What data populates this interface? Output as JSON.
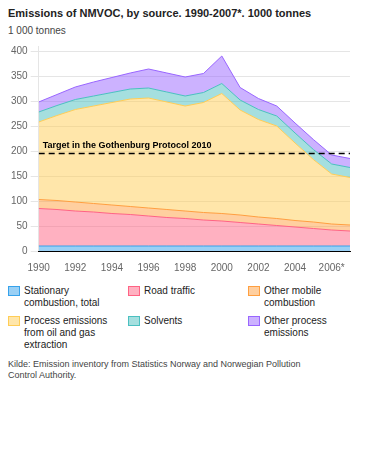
{
  "chart_data": {
    "type": "area",
    "stacked": true,
    "title": "Emissions of NMVOC, by source. 1990-2007*. 1000 tonnes",
    "ylabel": "1 000 tonnes",
    "x": [
      1990,
      1991,
      1992,
      1993,
      1994,
      1995,
      1996,
      1997,
      1998,
      1999,
      2000,
      2001,
      2002,
      2003,
      2004,
      2005,
      2006,
      2007
    ],
    "series": [
      {
        "name": "Stationary\ncombustion, total",
        "values": [
          10,
          10,
          10,
          10,
          10,
          10,
          10,
          10,
          10,
          10,
          10,
          10,
          10,
          10,
          10,
          10,
          10,
          10
        ]
      },
      {
        "name": "Road traffic",
        "values": [
          75,
          73,
          70,
          68,
          65,
          63,
          60,
          57,
          55,
          52,
          50,
          47,
          44,
          41,
          38,
          35,
          32,
          30
        ]
      },
      {
        "name": "Other mobile\ncombustion",
        "values": [
          18,
          18,
          18,
          17,
          17,
          16,
          16,
          16,
          15,
          15,
          15,
          15,
          14,
          14,
          13,
          13,
          12,
          12
        ]
      },
      {
        "name": "Process emissions\nfrom oil and gas\nextraction",
        "values": [
          155,
          170,
          185,
          195,
          205,
          215,
          220,
          215,
          210,
          220,
          240,
          210,
          195,
          185,
          155,
          125,
          100,
          95
        ]
      },
      {
        "name": "Solvents",
        "values": [
          20,
          20,
          20,
          20,
          20,
          20,
          20,
          20,
          20,
          20,
          20,
          20,
          20,
          20,
          20,
          20,
          20,
          20
        ]
      },
      {
        "name": "Other process\nemissions",
        "values": [
          20,
          22,
          25,
          28,
          30,
          32,
          38,
          38,
          38,
          38,
          55,
          25,
          22,
          20,
          20,
          20,
          18,
          18
        ]
      }
    ],
    "annotations": [
      {
        "text": "Target in the Gothenburg Protocol 2010",
        "y": 195,
        "line_style": "dashed",
        "color": "#000000"
      }
    ],
    "xlim": [
      1990,
      2007
    ],
    "xticks": [
      1990,
      1992,
      1994,
      1996,
      1998,
      2000,
      2002,
      2004,
      {
        "value": 2006,
        "label": "2006*"
      }
    ],
    "ylim": [
      0,
      410
    ],
    "yticks": [
      0,
      50,
      100,
      150,
      200,
      250,
      300,
      350,
      400
    ],
    "grid": "y",
    "legend": "bottom",
    "footnote": "Kilde: Emission inventory from Statistics Norway and Norwegian Pollution\nControl Authority."
  }
}
